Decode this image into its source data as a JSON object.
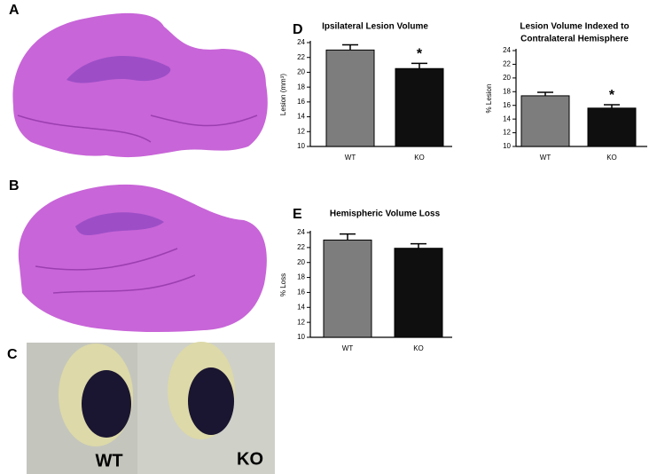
{
  "panel_labels": [
    "A",
    "B",
    "C",
    "D",
    "E"
  ],
  "photo_labels": [
    "WT",
    "KO"
  ],
  "chart_data": [
    {
      "type": "bar",
      "title": [
        "Ipsilateral Lesion Volume"
      ],
      "y_label": "Lesion (mm³)",
      "categories": [
        "WT",
        "KO"
      ],
      "values": [
        23.0,
        20.5
      ],
      "errors": [
        0.7,
        0.7
      ],
      "colors": [
        "#7d7d7d",
        "#0f0f0f"
      ],
      "annotation": "*",
      "ylim": [
        10,
        24
      ],
      "yticks": [
        10,
        12,
        14,
        16,
        18,
        20,
        22,
        24
      ]
    },
    {
      "type": "bar",
      "title": [
        "Lesion Volume Indexed to",
        "Contralateral Hemisphere"
      ],
      "y_label": "% Lesion",
      "categories": [
        "WT",
        "KO"
      ],
      "values": [
        17.4,
        15.6
      ],
      "errors": [
        0.5,
        0.5
      ],
      "colors": [
        "#7d7d7d",
        "#0f0f0f"
      ],
      "annotation": "*",
      "ylim": [
        10,
        24
      ],
      "yticks": [
        10,
        12,
        14,
        16,
        18,
        20,
        22,
        24
      ]
    },
    {
      "type": "bar",
      "title": [
        "Hemispheric Volume Loss"
      ],
      "y_label": "% Loss",
      "categories": [
        "WT",
        "KO"
      ],
      "values": [
        23.0,
        21.9
      ],
      "errors": [
        0.8,
        0.6
      ],
      "colors": [
        "#7d7d7d",
        "#0f0f0f"
      ],
      "ylim": [
        10,
        24
      ],
      "yticks": [
        10,
        12,
        14,
        16,
        18,
        20,
        22,
        24
      ]
    }
  ]
}
